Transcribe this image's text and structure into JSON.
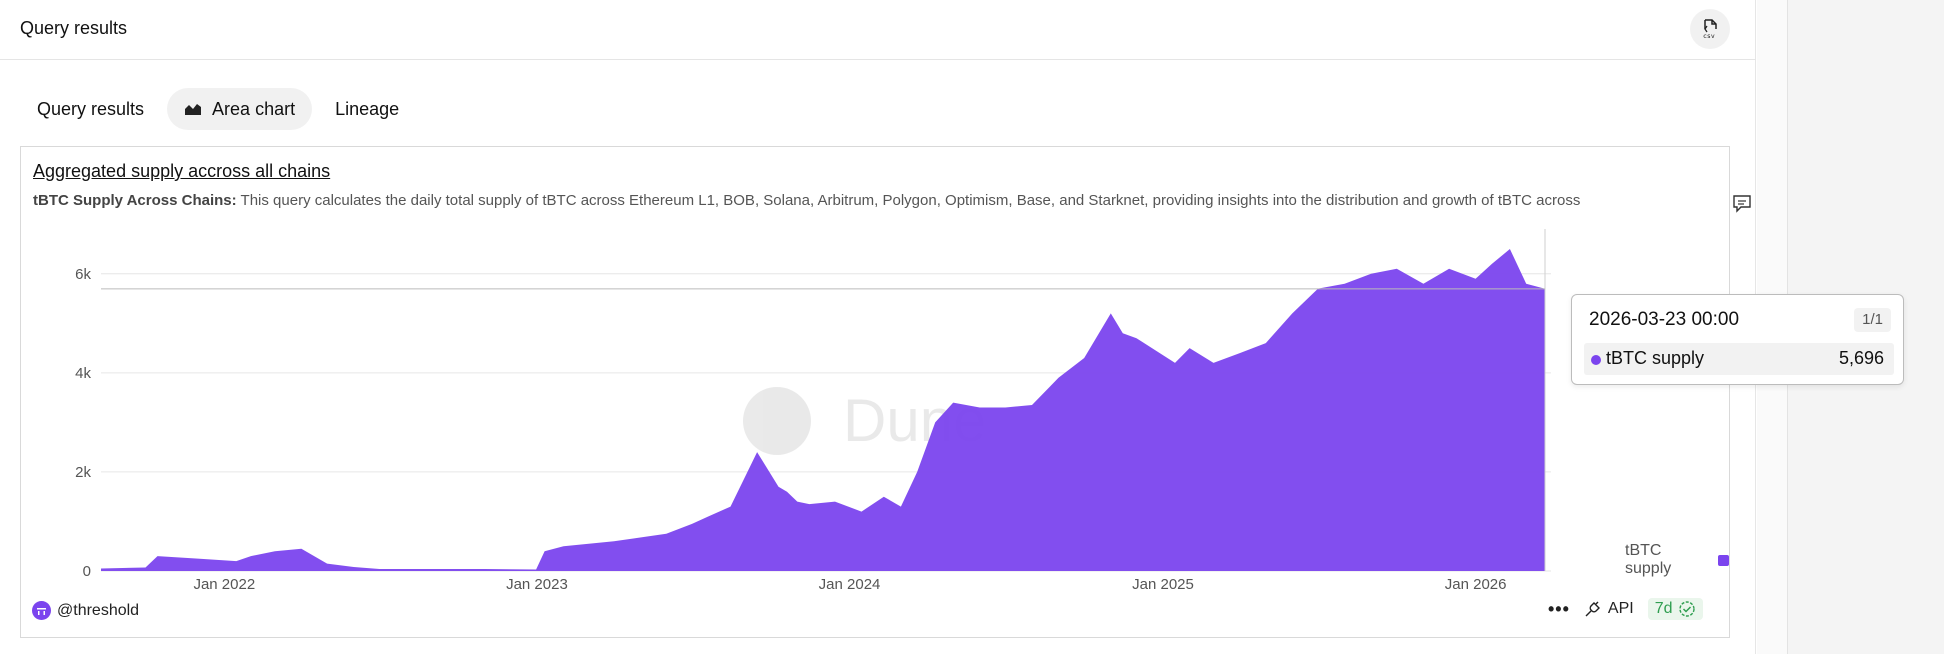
{
  "header": {
    "title": "Query results"
  },
  "tabs": [
    {
      "label": "Query results"
    },
    {
      "label": "Area chart"
    },
    {
      "label": "Lineage"
    }
  ],
  "card": {
    "title": "Aggregated supply accross all chains",
    "desc_label": "tBTC Supply Across Chains:",
    "desc_text": " This query calculates the daily total supply of tBTC across Ethereum L1, BOB, Solana, Arbitrum, Polygon, Optimism, Base, and Starknet, providing insights into the distribution and growth of tBTC across"
  },
  "tooltip": {
    "date": "2026-03-23 00:00",
    "page": "1/1",
    "series_label": "tBTC supply",
    "value": "5,696"
  },
  "legend": {
    "label": "tBTC supply",
    "color": "#7b44ee"
  },
  "footer": {
    "owner": "@threshold",
    "more": "•••",
    "api": "API",
    "freshness": "7d"
  },
  "watermark": "Dune",
  "icons": {
    "csv": "csv-download-icon",
    "comment": "comment-icon",
    "area": "area-chart-icon",
    "check": "check-circle-icon",
    "api": "api-plug-icon"
  },
  "chart_data": {
    "type": "area",
    "title": "Aggregated supply accross all chains",
    "series_name": "tBTC supply",
    "color": "#7b44ee",
    "xlabel": "",
    "ylabel": "",
    "x_ticks": [
      "Jan 2022",
      "Jan 2023",
      "Jan 2024",
      "Jan 2025",
      "Jan 2026"
    ],
    "y_ticks": [
      "0",
      "2k",
      "4k",
      "6k"
    ],
    "ylim": [
      0,
      6500
    ],
    "xlim": [
      "2021-08-10",
      "2026-03-23"
    ],
    "grid": true,
    "legend_position": "right",
    "x": [
      "2021-08-10",
      "2021-10-01",
      "2021-10-15",
      "2021-12-01",
      "2022-01-15",
      "2022-02-01",
      "2022-03-01",
      "2022-04-01",
      "2022-05-01",
      "2022-06-01",
      "2022-07-01",
      "2022-09-01",
      "2022-11-01",
      "2022-12-31",
      "2023-01-10",
      "2023-02-01",
      "2023-04-01",
      "2023-06-01",
      "2023-07-01",
      "2023-07-20",
      "2023-08-15",
      "2023-09-15",
      "2023-10-10",
      "2023-10-20",
      "2023-11-01",
      "2023-11-15",
      "2023-12-15",
      "2024-01-15",
      "2024-02-10",
      "2024-03-01",
      "2024-03-20",
      "2024-04-10",
      "2024-05-01",
      "2024-06-01",
      "2024-07-01",
      "2024-08-01",
      "2024-09-01",
      "2024-10-01",
      "2024-11-01",
      "2024-11-15",
      "2024-12-01",
      "2025-01-15",
      "2025-02-01",
      "2025-03-01",
      "2025-04-01",
      "2025-05-01",
      "2025-06-01",
      "2025-07-01",
      "2025-08-01",
      "2025-09-01",
      "2025-10-01",
      "2025-11-01",
      "2025-12-01",
      "2026-01-01",
      "2026-01-20",
      "2026-02-10",
      "2026-03-01",
      "2026-03-23"
    ],
    "values": [
      50,
      70,
      300,
      250,
      200,
      300,
      400,
      450,
      150,
      80,
      40,
      40,
      40,
      30,
      400,
      500,
      600,
      750,
      950,
      1100,
      1300,
      2400,
      1700,
      1600,
      1400,
      1350,
      1400,
      1200,
      1500,
      1300,
      2000,
      3000,
      3400,
      3300,
      3300,
      3350,
      3900,
      4300,
      5200,
      4800,
      4700,
      4200,
      4500,
      4200,
      4400,
      4600,
      5200,
      5700,
      5800,
      6000,
      6100,
      5800,
      6100,
      5900,
      6200,
      6500,
      5800,
      5696
    ]
  }
}
